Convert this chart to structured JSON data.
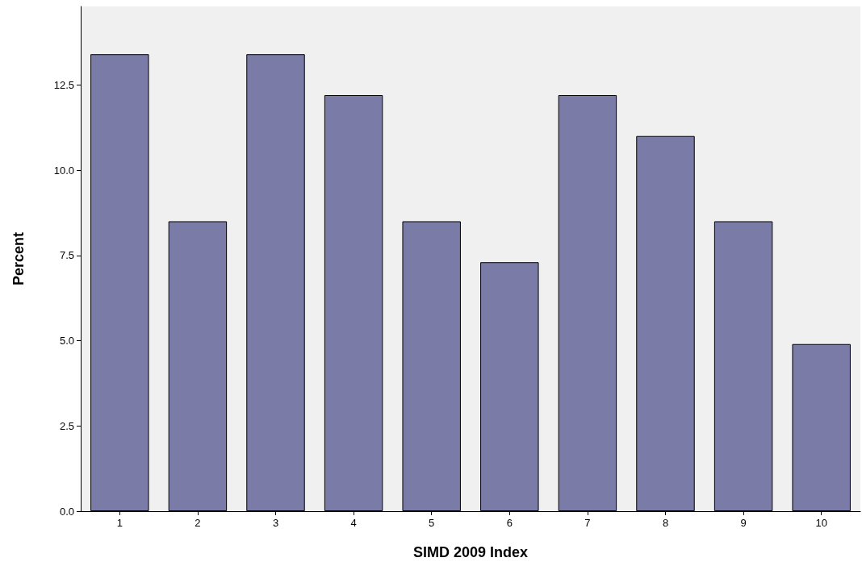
{
  "chart_data": {
    "type": "bar",
    "xlabel": "SIMD 2009 Index",
    "ylabel": "Percent",
    "categories": [
      "1",
      "2",
      "3",
      "4",
      "5",
      "6",
      "7",
      "8",
      "9",
      "10"
    ],
    "values": [
      13.4,
      8.5,
      13.4,
      12.2,
      8.5,
      7.3,
      12.2,
      11.0,
      8.5,
      4.9
    ],
    "color": "#7b7ba8",
    "ylim": [
      0,
      14.8
    ],
    "yticks": [
      {
        "value": 0,
        "label": "0.0"
      },
      {
        "value": 2.5,
        "label": "2.5"
      },
      {
        "value": 5,
        "label": "5.0"
      },
      {
        "value": 7.5,
        "label": "7.5"
      },
      {
        "value": 10,
        "label": "10.0"
      },
      {
        "value": 12.5,
        "label": "12.5"
      }
    ],
    "grid": false
  }
}
